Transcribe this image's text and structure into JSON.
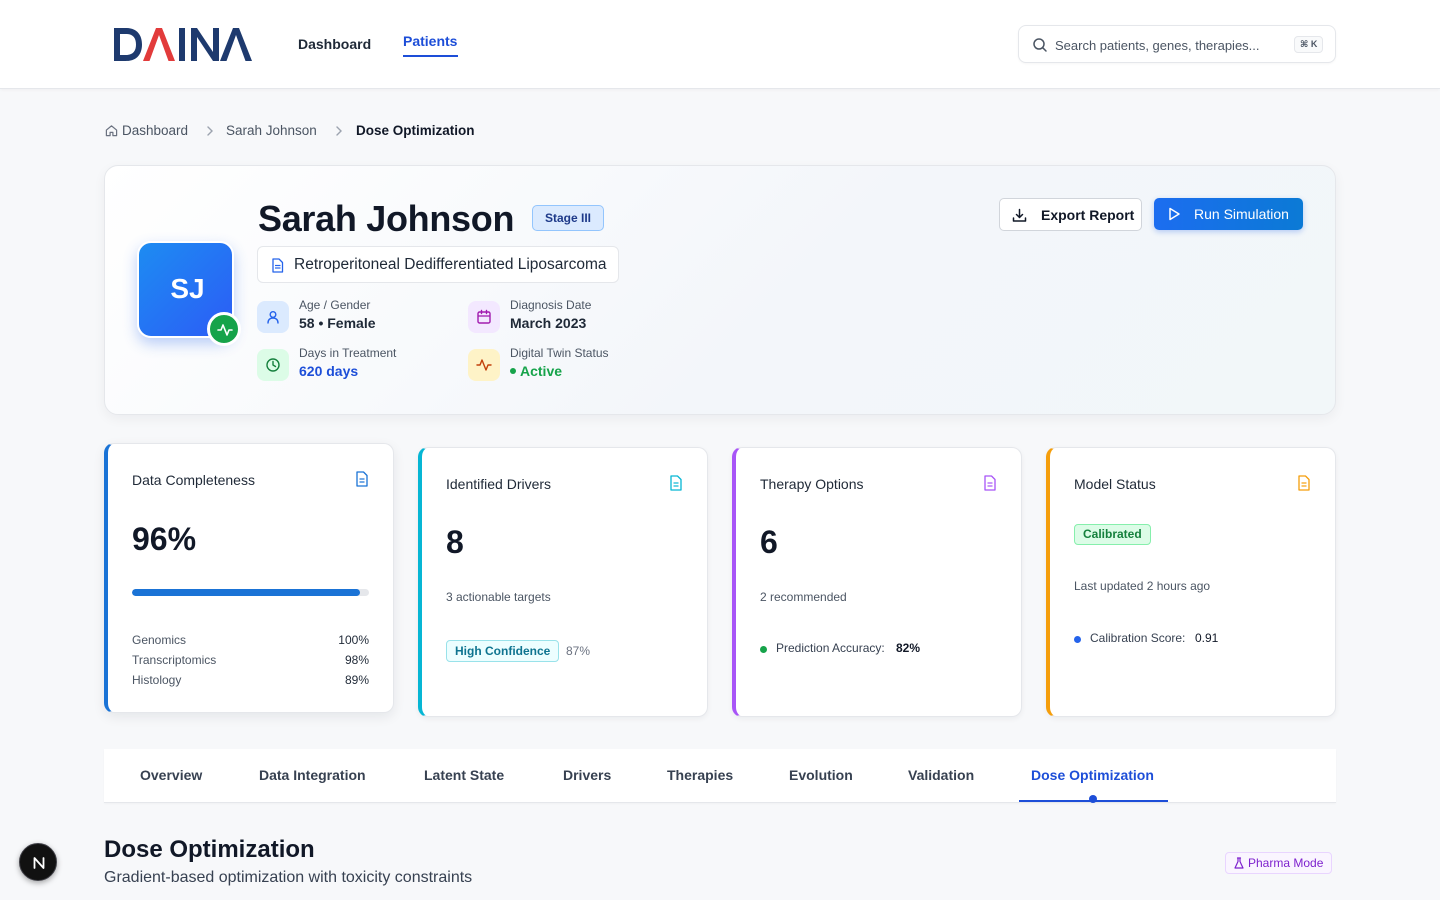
{
  "app": {
    "logo_text": "DAINA",
    "colors": {
      "brand_navy": "#1e3a6e",
      "brand_red": "#e23b3b",
      "primary": "#1d4ed8",
      "success": "#16a34a"
    }
  },
  "nav": {
    "items": [
      {
        "label": "Dashboard",
        "active": false
      },
      {
        "label": "Patients",
        "active": true
      }
    ],
    "search": {
      "placeholder": "Search patients, genes, therapies...",
      "shortcut": "⌘ K",
      "icon": "search-icon"
    }
  },
  "breadcrumb": {
    "items": [
      "Dashboard",
      "Sarah Johnson",
      "Dose Optimization"
    ],
    "home_icon": "home-icon"
  },
  "patient": {
    "initials": "SJ",
    "name": "Sarah Johnson",
    "stage": "Stage III",
    "diagnosis": "Retroperitoneal Dedifferentiated Liposarcoma",
    "meta": [
      {
        "label": "Age / Gender",
        "value": "58 • Female",
        "icon": "user-icon"
      },
      {
        "label": "Diagnosis Date",
        "value": "March 2023",
        "icon": "calendar-icon"
      },
      {
        "label": "Days in Treatment",
        "value": "620 days",
        "icon": "clock-icon"
      },
      {
        "label": "Digital Twin Status",
        "value": "Active",
        "icon": "activity-icon"
      }
    ],
    "actions": {
      "export_label": "Export Report",
      "run_label": "Run Simulation"
    }
  },
  "stats": {
    "completeness": {
      "title": "Data Completeness",
      "value": "96%",
      "progress": 0.96,
      "color": "#1a73d6",
      "rows": [
        {
          "label": "Genomics",
          "value": "100%"
        },
        {
          "label": "Transcriptomics",
          "value": "98%"
        },
        {
          "label": "Histology",
          "value": "89%"
        }
      ]
    },
    "drivers": {
      "title": "Identified Drivers",
      "value": "8",
      "sub": "3 actionable targets",
      "badge": "High Confidence",
      "badge_value": "87%",
      "color": "#06b6d4"
    },
    "therapy": {
      "title": "Therapy Options",
      "value": "6",
      "sub": "2 recommended",
      "metric_label": "Prediction Accuracy:",
      "metric_value": "82%",
      "color": "#a855f7"
    },
    "model": {
      "title": "Model Status",
      "badge": "Calibrated",
      "sub": "Last updated 2 hours ago",
      "metric_label": "Calibration Score:",
      "metric_value": "0.91",
      "color": "#f59e0b"
    }
  },
  "tabs": [
    {
      "label": "Overview",
      "active": false
    },
    {
      "label": "Data Integration",
      "active": false
    },
    {
      "label": "Latent State",
      "active": false
    },
    {
      "label": "Drivers",
      "active": false
    },
    {
      "label": "Therapies",
      "active": false
    },
    {
      "label": "Evolution",
      "active": false
    },
    {
      "label": "Validation",
      "active": false
    },
    {
      "label": "Dose Optimization",
      "active": true
    }
  ],
  "section": {
    "title": "Dose Optimization",
    "subtitle": "Gradient-based optimization with toxicity constraints",
    "badge": "Pharma Mode"
  },
  "dev_button": {
    "label": "N"
  }
}
